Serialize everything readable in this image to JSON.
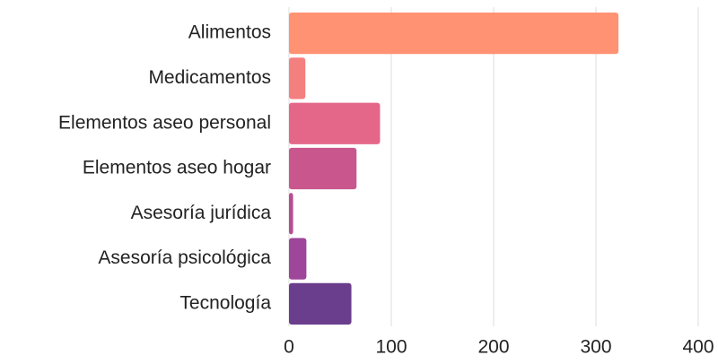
{
  "chart_data": {
    "type": "bar",
    "orientation": "horizontal",
    "categories": [
      "Alimentos",
      "Medicamentos",
      "Elementos aseo personal",
      "Elementos aseo hogar",
      "Asesoría jurídica",
      "Asesoría psicológica",
      "Tecnología"
    ],
    "values": [
      322,
      16,
      89,
      66,
      4,
      17,
      61
    ],
    "colors": [
      "#ff9272",
      "#f47f7f",
      "#e4678a",
      "#c9568d",
      "#b74d92",
      "#9e4699",
      "#6a3e8c"
    ],
    "xlim": [
      0,
      400
    ],
    "xticks": [
      0,
      100,
      200,
      300,
      400
    ],
    "grid": true
  }
}
